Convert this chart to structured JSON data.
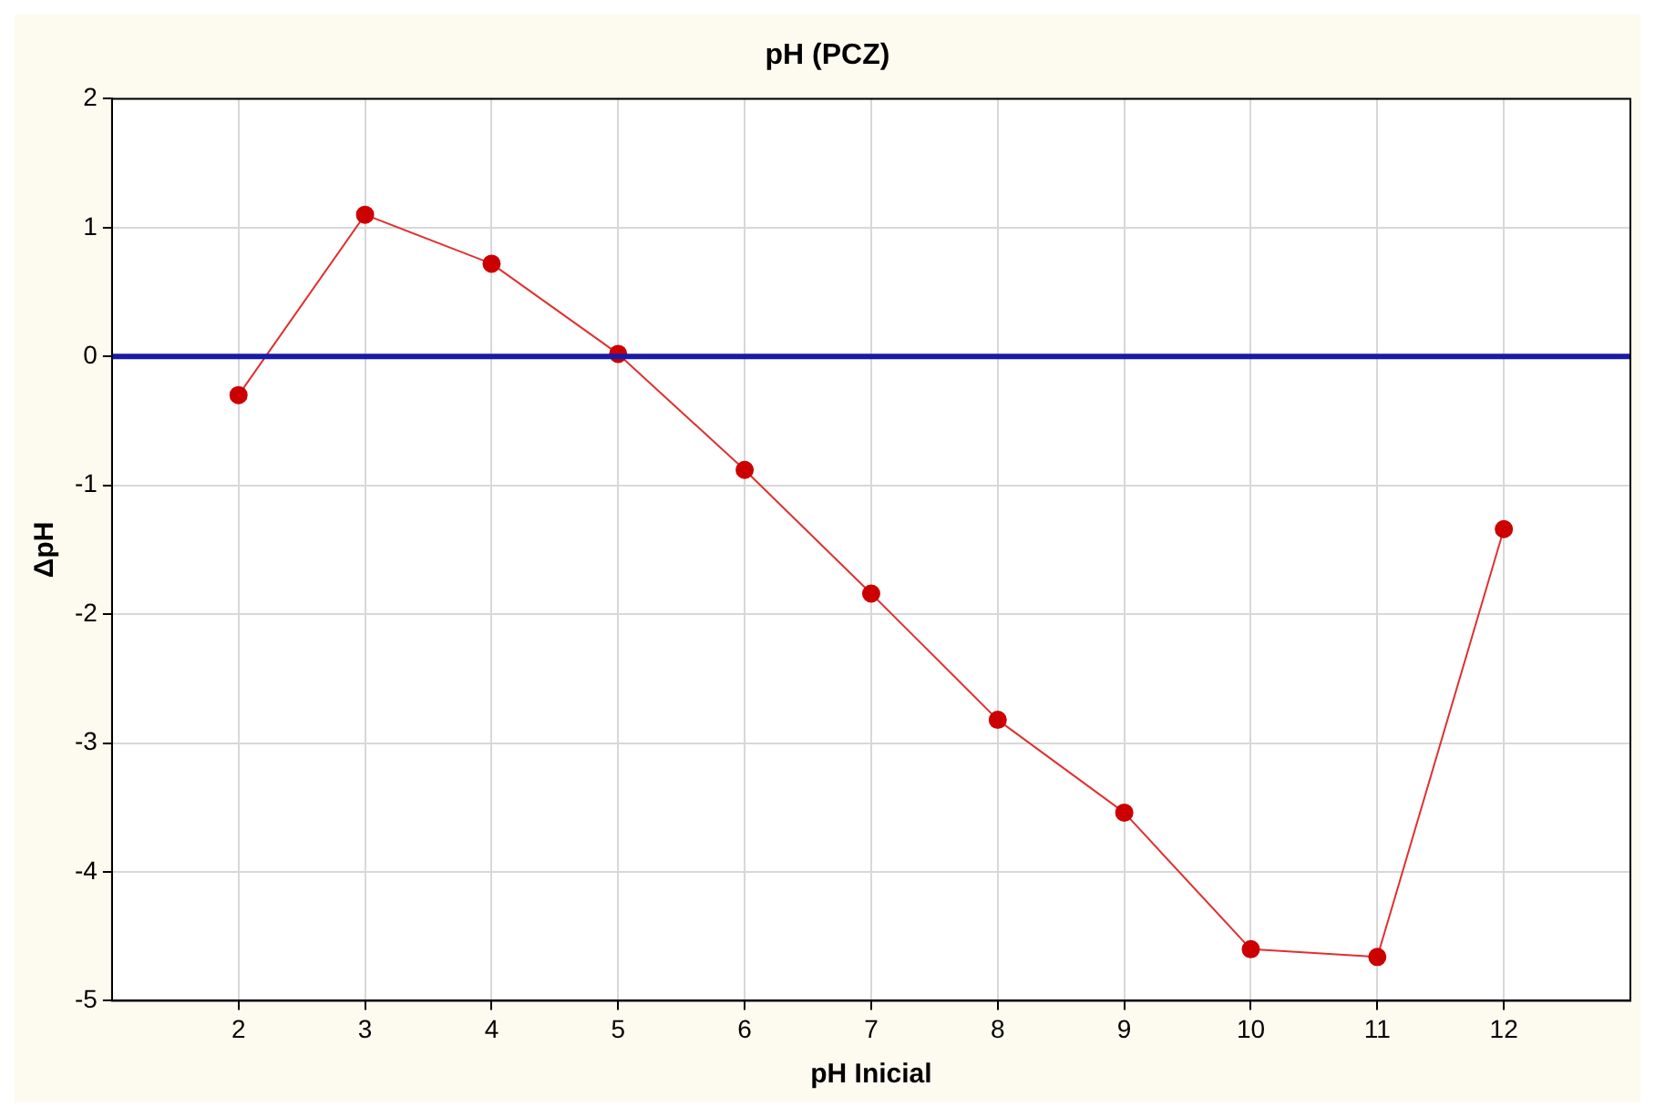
{
  "chart_data": {
    "type": "line",
    "title": "pH (PCZ)",
    "xlabel": "pH Inicial",
    "ylabel": "ΔpH",
    "x": [
      2,
      3,
      4,
      5,
      6,
      7,
      8,
      9,
      10,
      11,
      12
    ],
    "series": [
      {
        "color": "#e03030",
        "values": [
          -0.3,
          1.1,
          0.72,
          0.02,
          -0.88,
          -1.84,
          -2.82,
          -3.54,
          -4.6,
          -4.66,
          -1.34
        ]
      }
    ],
    "xlim": [
      1,
      13
    ],
    "xticks": [
      2,
      3,
      4,
      5,
      6,
      7,
      8,
      9,
      10,
      11,
      12
    ],
    "ylim": [
      -5,
      2
    ],
    "yticks": [
      -5,
      -4,
      -3,
      -2,
      -1,
      0,
      1,
      2
    ],
    "ref_lines": [
      {
        "axis": "y",
        "value": 0,
        "color": "#1a1aa8"
      }
    ],
    "grid": true,
    "marker": "circle",
    "line_style": "solid",
    "legend": false
  }
}
